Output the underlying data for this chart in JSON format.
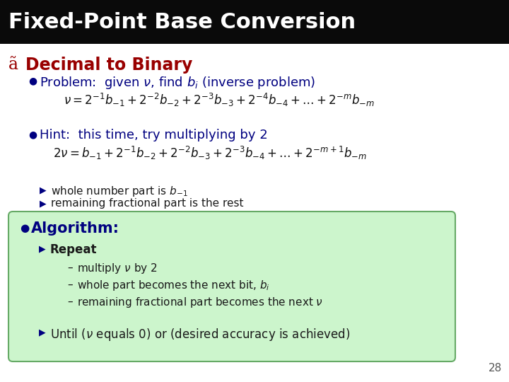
{
  "title": "Fixed-Point Base Conversion",
  "title_bg": "#0a0a0a",
  "title_color": "#ffffff",
  "title_fontsize": 22,
  "section_label": "ã",
  "section_text": "Decimal to Binary",
  "section_color": "#990000",
  "section_fontsize": 17,
  "bullet_color": "#000080",
  "bullet_fontsize": 13,
  "bg_color": "#ffffff",
  "green_box_color": "#ccf5cc",
  "green_box_edge": "#66aa66",
  "page_number": "28",
  "formula1_fontsize": 12,
  "formula2_fontsize": 12,
  "body_text_color": "#000080",
  "sub_text_color": "#1a1a1a"
}
